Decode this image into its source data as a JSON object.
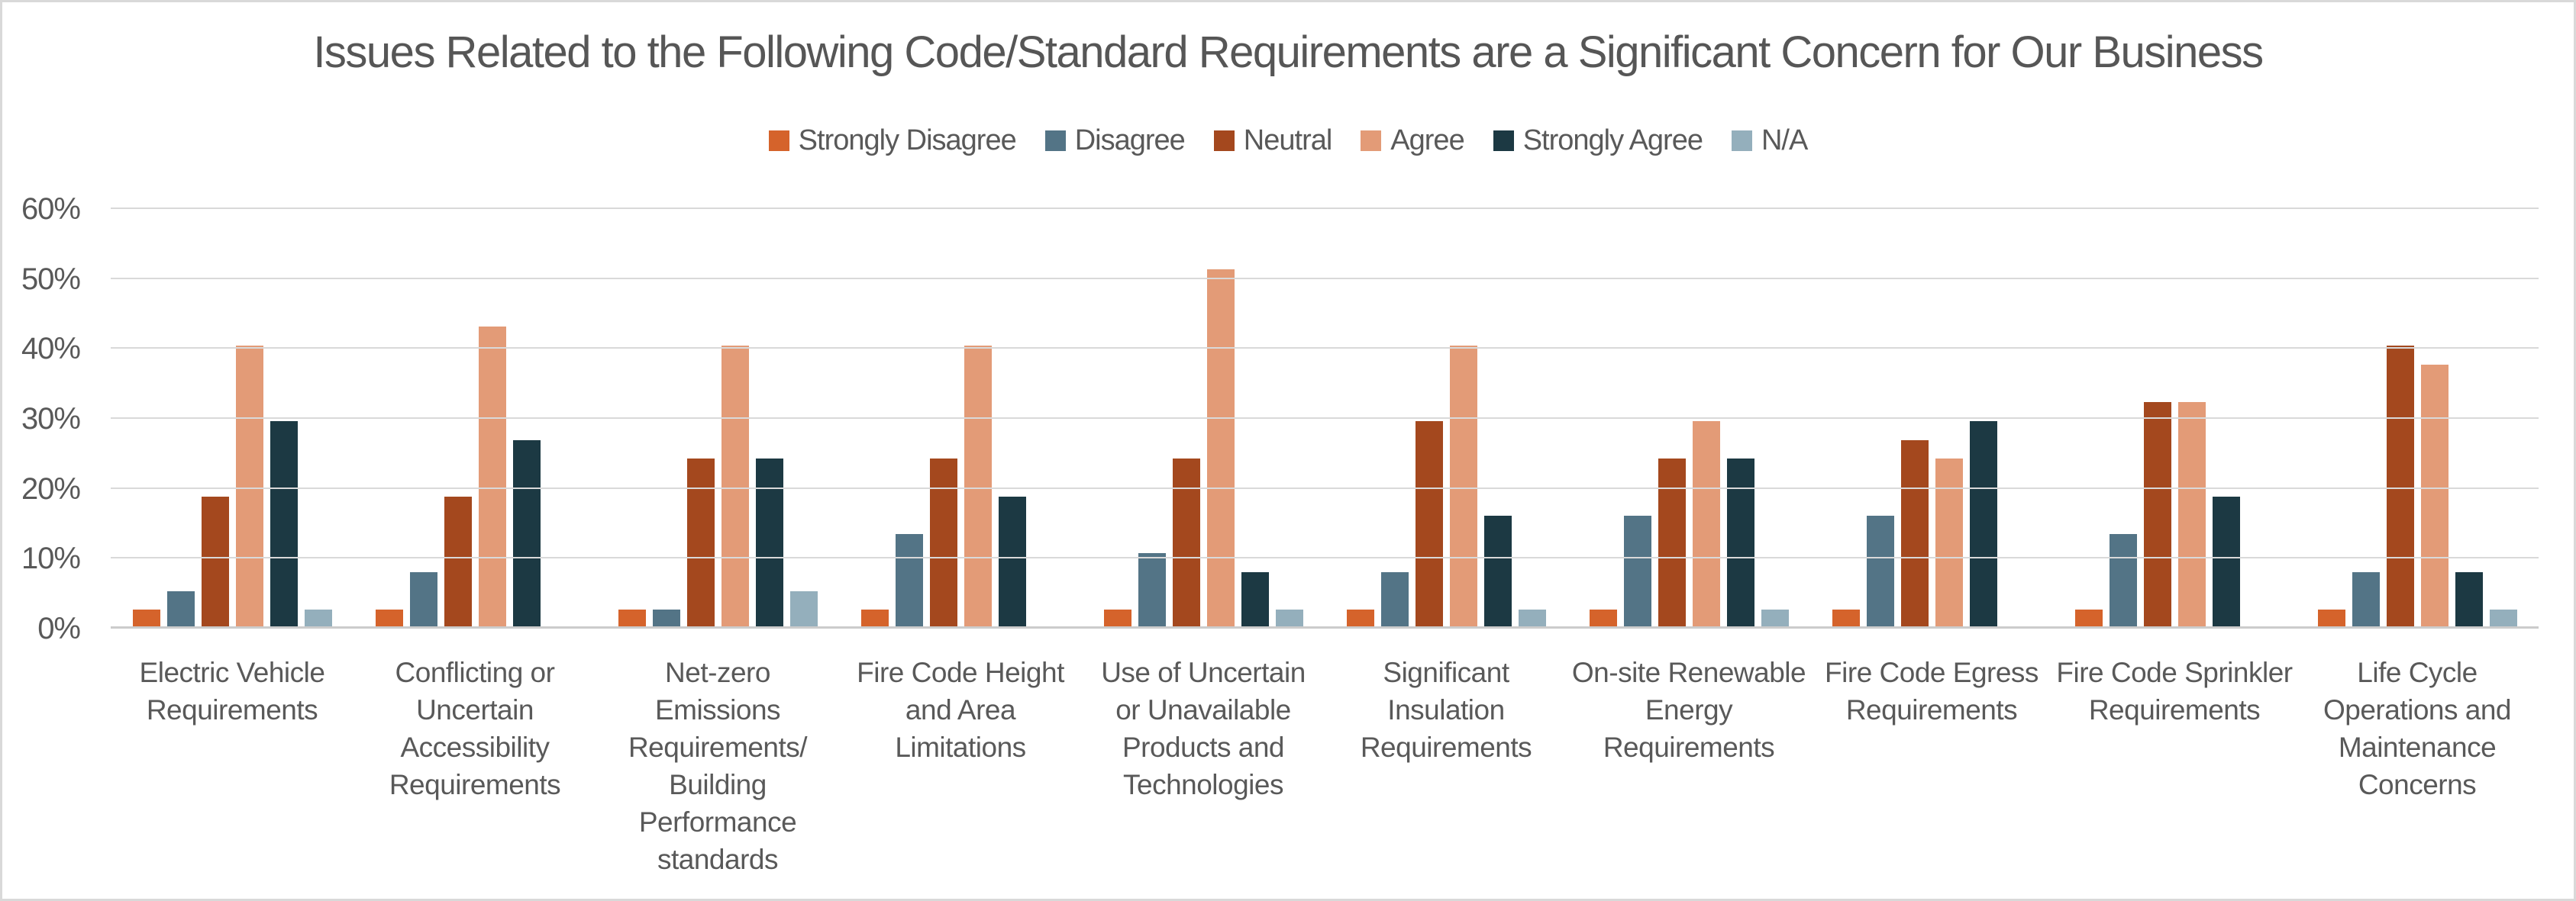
{
  "chart_data": {
    "type": "bar",
    "title": "Issues Related to the Following Code/Standard Requirements are a Significant Concern for Our Business",
    "legend_position": "top",
    "grid": "horizontal",
    "gridline_color": "#D9D9D9",
    "text_color": "#595959",
    "ylim": [
      0,
      60
    ],
    "yticks": [
      "0%",
      "10%",
      "20%",
      "30%",
      "40%",
      "50%",
      "60%"
    ],
    "xlabel": "",
    "ylabel": "",
    "categories": [
      "Electric Vehicle\nRequirements",
      "Conflicting or\nUncertain\nAccessibility\nRequirements",
      "Net-zero\nEmissions\nRequirements/\nBuilding\nPerformance\nstandards",
      "Fire Code Height\nand Area\nLimitations",
      "Use of Uncertain\nor Unavailable\nProducts and\nTechnologies",
      "Significant\nInsulation\nRequirements",
      "On-site Renewable\nEnergy\nRequirements",
      "Fire Code Egress\nRequirements",
      "Fire Code Sprinkler\nRequirements",
      "Life Cycle\nOperations and\nMaintenance\nConcerns"
    ],
    "series": [
      {
        "name": "Strongly Disagree",
        "color": "#D5632B",
        "values": [
          2.7,
          2.7,
          2.7,
          2.7,
          2.7,
          2.7,
          2.7,
          2.7,
          2.7,
          2.7
        ]
      },
      {
        "name": "Disagree",
        "color": "#537486",
        "values": [
          5.4,
          8.1,
          2.7,
          13.5,
          10.8,
          8.1,
          16.2,
          16.2,
          13.5,
          8.1
        ]
      },
      {
        "name": "Neutral",
        "color": "#A4481E",
        "values": [
          18.9,
          18.9,
          24.3,
          24.3,
          24.3,
          29.7,
          24.3,
          27.0,
          32.4,
          40.5
        ]
      },
      {
        "name": "Agree",
        "color": "#E39B77",
        "values": [
          40.5,
          43.2,
          40.5,
          40.5,
          51.4,
          40.5,
          29.7,
          24.3,
          32.4,
          37.8
        ]
      },
      {
        "name": "Strongly Agree",
        "color": "#1C3943",
        "values": [
          29.7,
          27.0,
          24.3,
          18.9,
          8.1,
          16.2,
          24.3,
          29.7,
          18.9,
          8.1
        ]
      },
      {
        "name": "N/A",
        "color": "#94AFBC",
        "values": [
          2.7,
          0,
          5.4,
          0,
          2.7,
          2.7,
          2.7,
          0,
          0,
          2.7
        ]
      }
    ]
  }
}
